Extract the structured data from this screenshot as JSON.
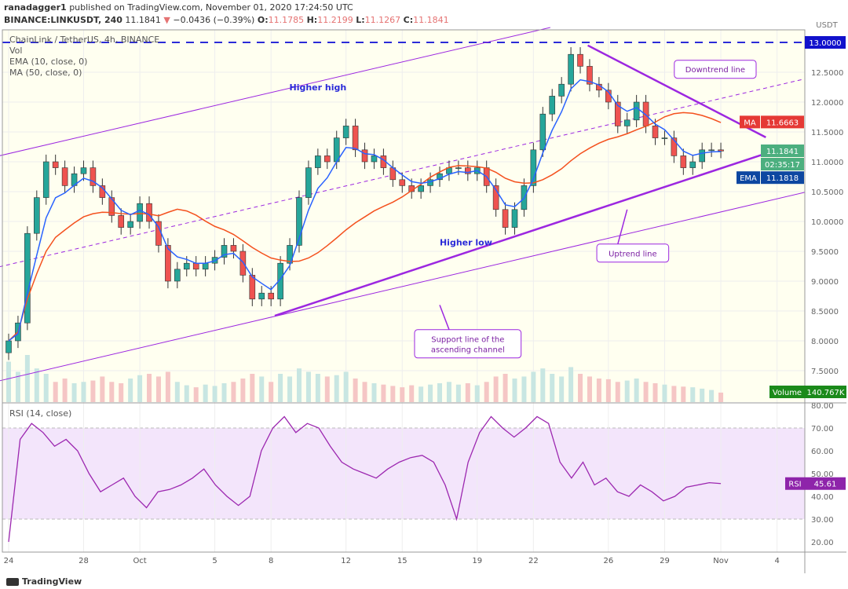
{
  "header": {
    "author": "ranadagger1",
    "published": "published on TradingView.com, November 01, 2020 17:24:50 UTC",
    "symbol": "BINANCE:LINKUSDT, 240",
    "last": "11.1841",
    "change": "−0.0436 (−0.39%)",
    "o_label": "O:",
    "o": "11.1785",
    "h_label": "H:",
    "h": "11.2199",
    "l_label": "L:",
    "l": "11.1267",
    "c_label": "C:",
    "c": "11.1841"
  },
  "legend": {
    "title": "ChainLink / TetherUS, 4h, BINANCE",
    "vol": "Vol",
    "ema": "EMA (10, close, 0)",
    "ma": "MA (50, close, 0)",
    "rsi": "RSI (14, close)"
  },
  "footer": {
    "brand": "TradingView"
  },
  "colors": {
    "candle_up": "#26a69a",
    "candle_down": "#ef5350",
    "ema": "#2962ff",
    "ma": "#f4511e",
    "rsi": "#9c27b0",
    "annotation": "#9c27e0",
    "bg": "#fffff0"
  },
  "chart_data": {
    "type": "candlestick",
    "currency": "USDT",
    "x_unit": "days since Sep 24, 2020",
    "x_ticks": [
      {
        "d": 0,
        "label": "24"
      },
      {
        "d": 4,
        "label": "28"
      },
      {
        "d": 7,
        "label": "Oct"
      },
      {
        "d": 11,
        "label": "5"
      },
      {
        "d": 14,
        "label": "8"
      },
      {
        "d": 18,
        "label": "12"
      },
      {
        "d": 21,
        "label": "15"
      },
      {
        "d": 25,
        "label": "19"
      },
      {
        "d": 28,
        "label": "22"
      },
      {
        "d": 32,
        "label": "26"
      },
      {
        "d": 35,
        "label": "29"
      },
      {
        "d": 38,
        "label": "Nov"
      },
      {
        "d": 41,
        "label": "4"
      }
    ],
    "price_ticks": [
      "12.5000",
      "12.0000",
      "11.5000",
      "11.0000",
      "10.5000",
      "10.0000",
      "9.5000",
      "9.0000",
      "8.5000",
      "8.0000",
      "7.5000"
    ],
    "price_tick_values": [
      12.5,
      12,
      11.5,
      11,
      10.5,
      10,
      9.5,
      9,
      8.5,
      8,
      7.5
    ],
    "rsi_ticks": [
      "80.00",
      "70.00",
      "60.00",
      "50.00",
      "40.00",
      "30.00",
      "20.00"
    ],
    "rsi_tick_values": [
      80,
      70,
      60,
      50,
      40,
      30,
      20
    ],
    "price_range": [
      7.2,
      13.2
    ],
    "closes": [
      8.0,
      8.3,
      9.8,
      10.4,
      11.0,
      10.9,
      10.6,
      10.8,
      10.9,
      10.6,
      10.4,
      10.1,
      9.9,
      10.0,
      10.3,
      10.0,
      9.6,
      9.0,
      9.2,
      9.3,
      9.2,
      9.3,
      9.4,
      9.6,
      9.5,
      9.1,
      8.7,
      8.8,
      8.7,
      9.3,
      9.6,
      10.4,
      10.9,
      11.1,
      11.0,
      11.4,
      11.6,
      11.2,
      11.0,
      11.1,
      10.9,
      10.7,
      10.6,
      10.5,
      10.6,
      10.7,
      10.8,
      10.9,
      10.9,
      10.8,
      10.9,
      10.6,
      10.2,
      9.9,
      10.2,
      10.6,
      11.2,
      11.8,
      12.1,
      12.3,
      12.8,
      12.6,
      12.3,
      12.2,
      12.0,
      11.6,
      11.7,
      12.0,
      11.6,
      11.4,
      11.4,
      11.1,
      10.9,
      11.0,
      11.2,
      11.2,
      11.18
    ],
    "volume_k": [
      600,
      450,
      700,
      500,
      420,
      300,
      350,
      280,
      300,
      320,
      380,
      300,
      280,
      350,
      400,
      420,
      380,
      450,
      300,
      250,
      220,
      260,
      240,
      280,
      300,
      350,
      420,
      380,
      300,
      420,
      380,
      500,
      450,
      420,
      380,
      400,
      450,
      350,
      300,
      280,
      260,
      240,
      220,
      250,
      230,
      260,
      280,
      300,
      260,
      280,
      250,
      300,
      380,
      420,
      350,
      380,
      450,
      500,
      420,
      380,
      520,
      420,
      380,
      350,
      340,
      300,
      320,
      350,
      300,
      280,
      260,
      240,
      230,
      220,
      200,
      180,
      141
    ],
    "rsi": [
      20,
      65,
      72,
      68,
      62,
      65,
      60,
      50,
      42,
      45,
      48,
      40,
      35,
      42,
      43,
      45,
      48,
      52,
      45,
      40,
      36,
      40,
      60,
      70,
      75,
      68,
      72,
      70,
      62,
      55,
      52,
      50,
      48,
      52,
      55,
      57,
      58,
      55,
      45,
      30,
      55,
      68,
      75,
      70,
      66,
      70,
      75,
      72,
      55,
      48,
      55,
      45,
      48,
      42,
      40,
      45,
      42,
      38,
      40,
      44,
      45,
      46,
      45.61
    ],
    "rsi_band": [
      30,
      70
    ],
    "labels": {
      "ma": "MA",
      "ma_value": "11.6663",
      "last": "11.1841",
      "countdown": "02:35:17",
      "ema": "EMA",
      "ema_value": "11.1818",
      "volume": "Volume",
      "volume_value": "140.767K",
      "rsi": "RSI",
      "rsi_value": "45.61",
      "top_level": "13.0000"
    },
    "horizontal_line": 13.0,
    "annotations": [
      {
        "name": "channel-upper",
        "from": [
          -0.5,
          11.1
        ],
        "to": [
          28.9,
          13.25
        ],
        "width": 1
      },
      {
        "name": "channel-lower",
        "from": [
          -0.5,
          7.33
        ],
        "to": [
          42.5,
          10.49
        ],
        "width": 1
      },
      {
        "name": "channel-mid",
        "from": [
          -0.5,
          9.24
        ],
        "to": [
          42.5,
          12.39
        ],
        "width": 1,
        "dash": true
      },
      {
        "name": "uptrend-line",
        "from": [
          14.2,
          8.42
        ],
        "to": [
          40.8,
          11.18
        ],
        "width": 2.5
      },
      {
        "name": "downtrend-line",
        "from": [
          30.9,
          12.95
        ],
        "to": [
          40.4,
          11.41
        ],
        "width": 2.5
      }
    ],
    "text_notes": [
      {
        "text": "Higher high",
        "at": [
          16.5,
          12.25
        ],
        "boxed": false
      },
      {
        "text": "Higher low",
        "at": [
          24.4,
          9.65
        ],
        "boxed": false
      },
      {
        "text": "Downtrend line",
        "at": [
          37.7,
          12.55
        ],
        "boxed": true
      },
      {
        "text": "Uptrend line",
        "at": [
          33.3,
          9.47
        ],
        "boxed": true,
        "arrow_to": [
          33,
          10.2
        ]
      },
      {
        "text": "Support line of the|ascending channel",
        "at": [
          24.5,
          7.95
        ],
        "boxed": true,
        "arrow_to": [
          23,
          8.6
        ]
      }
    ]
  }
}
